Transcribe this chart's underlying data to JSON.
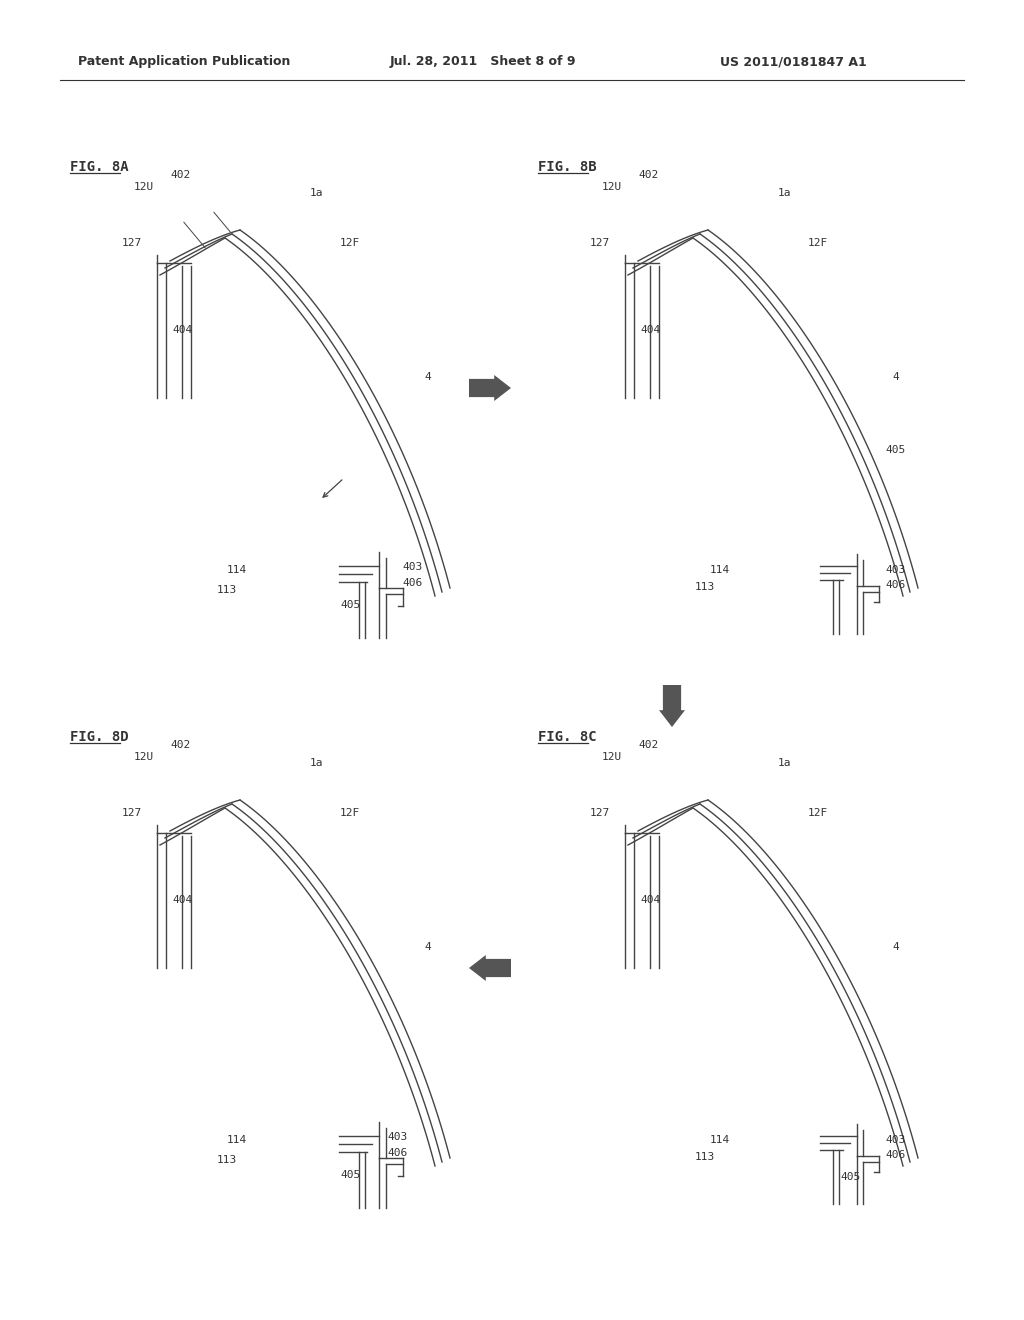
{
  "header_left": "Patent Application Publication",
  "header_mid": "Jul. 28, 2011   Sheet 8 of 9",
  "header_right": "US 2011/0181847 A1",
  "background": "#ffffff",
  "line_color": "#333333",
  "text_color": "#333333",
  "fig_label_8A": "FIG. 8A",
  "fig_label_8B": "FIG. 8B",
  "fig_label_8C": "FIG. 8C",
  "fig_label_8D": "FIG. 8D"
}
